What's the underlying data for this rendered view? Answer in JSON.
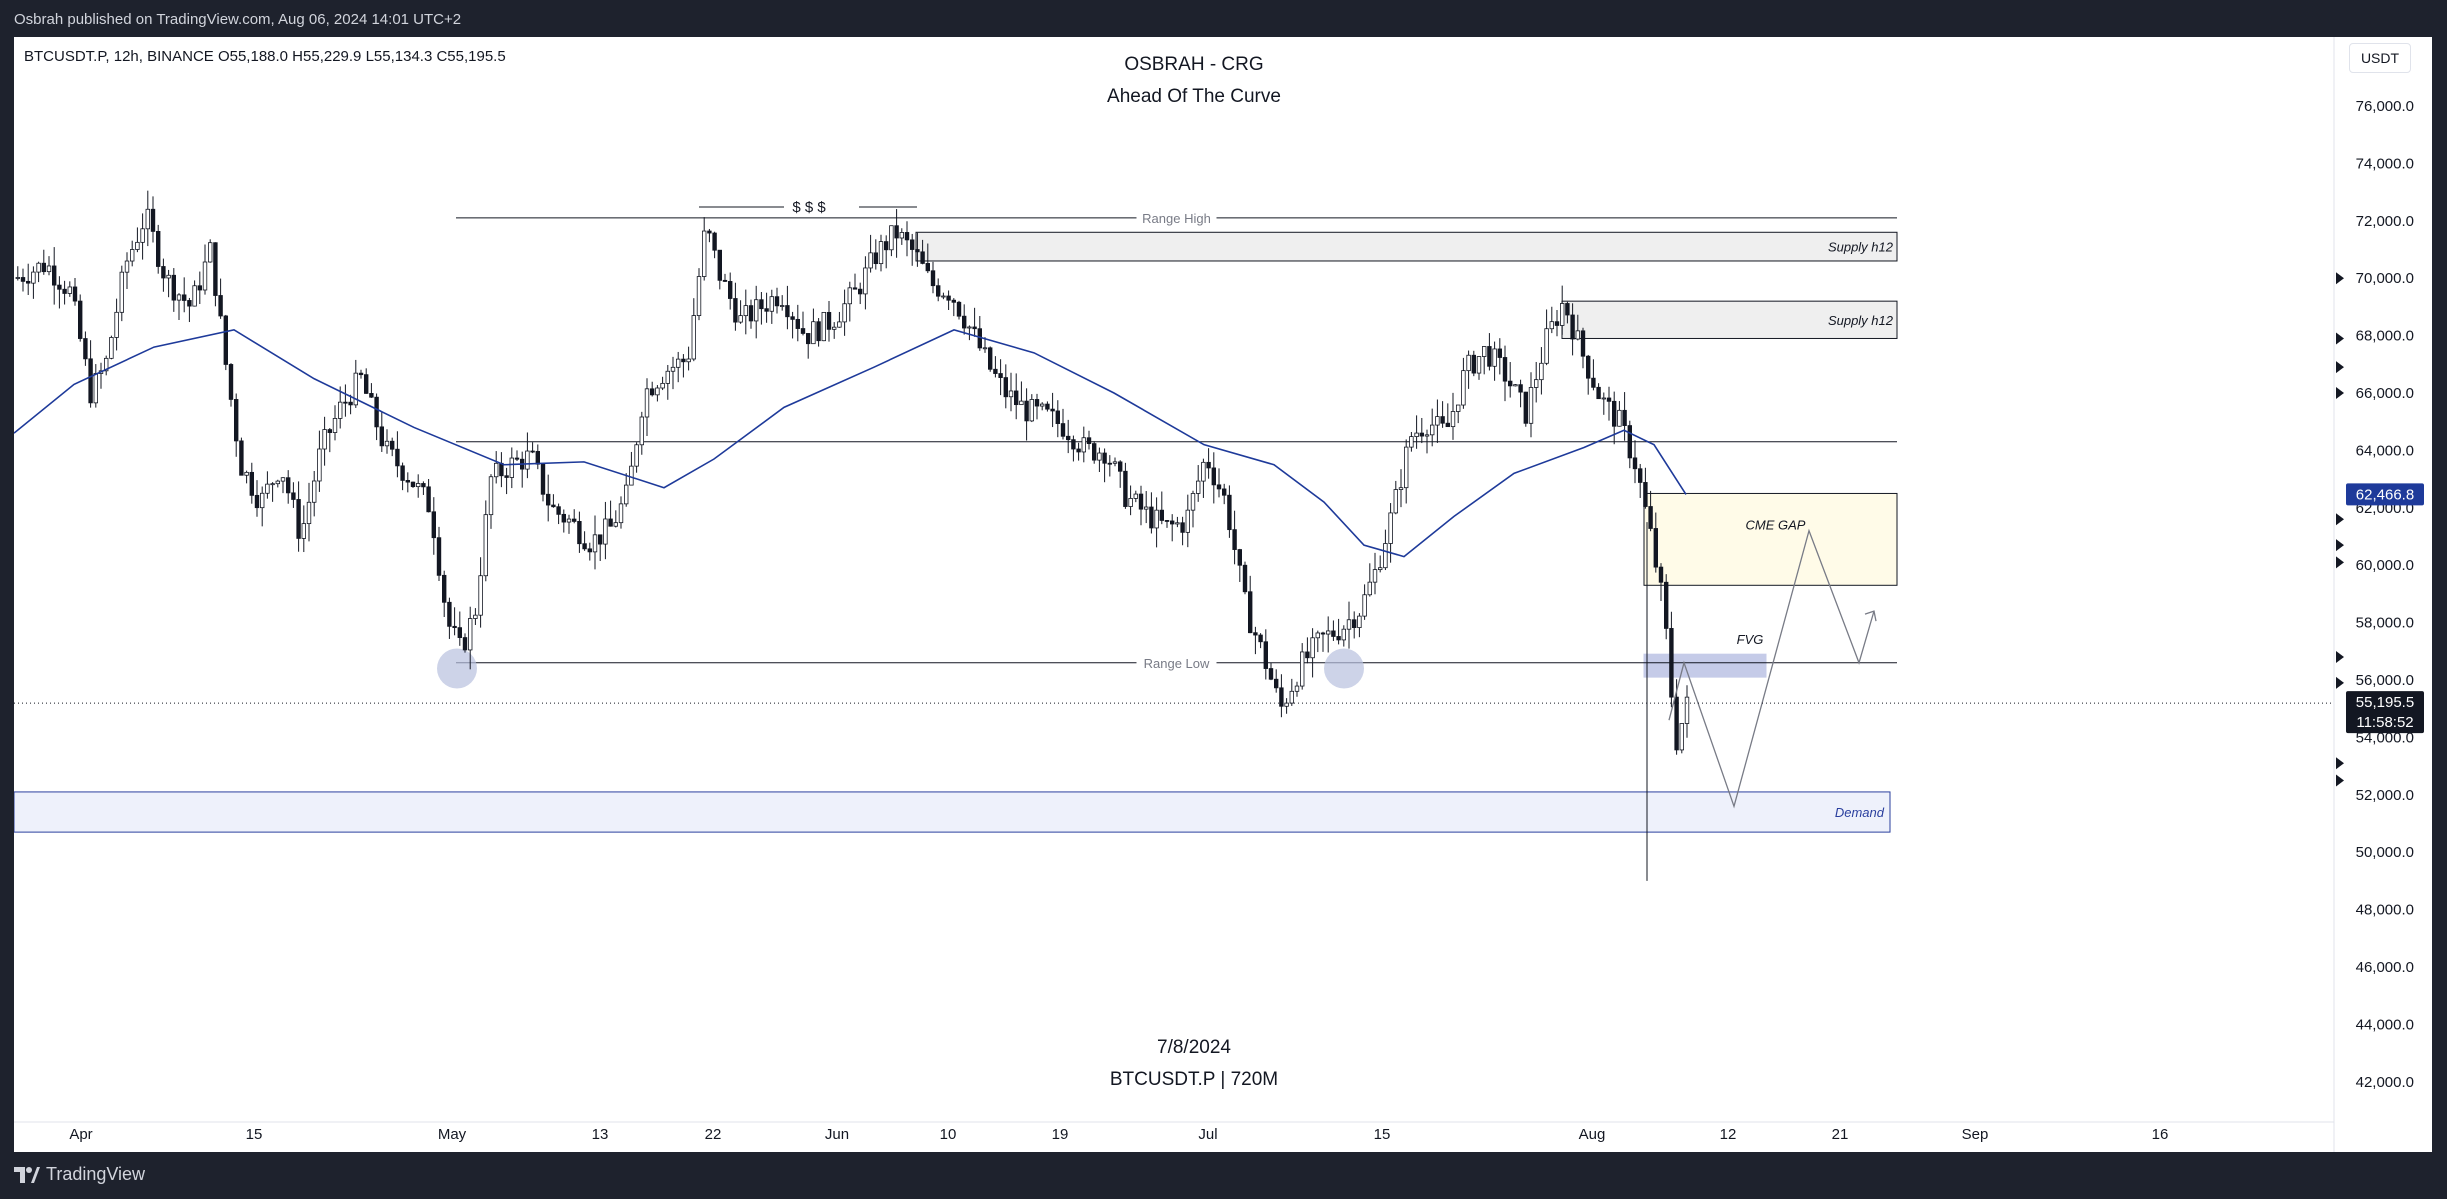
{
  "header": {
    "published": "Osbrah published on TradingView.com, Aug 06, 2024 14:01 UTC+2"
  },
  "legend": "BTCUSDT.P, 12h, BINANCE  O55,188.0  H55,229.9  L55,134.3  C55,195.5",
  "title": "OSBRAH - CRG",
  "subtitle": "Ahead Of The Curve",
  "watermark": {
    "date": "7/8/2024",
    "symbol": "BTCUSDT.P | 720M"
  },
  "currency_button": "USDT",
  "footer": {
    "brand": "TradingView"
  },
  "colors": {
    "up": "#ffffff",
    "down": "#131722",
    "ma": "#1e3a9a",
    "demand": "#2a3f9e",
    "cme_fill": "#fffbe8",
    "supply_fill": "#efefef",
    "price_tag": "#131722",
    "ma_tag": "#1e3a9a"
  },
  "chart_data": {
    "type": "candlestick",
    "interval": "12h",
    "y_axis": {
      "min": 41000,
      "max": 77000,
      "ticks": [
        76000,
        74000,
        72000,
        70000,
        68000,
        66000,
        64000,
        62000,
        60000,
        58000,
        56000,
        54000,
        52000,
        50000,
        48000,
        46000,
        44000,
        42000
      ]
    },
    "x_axis": {
      "labels": [
        "Apr",
        "15",
        "May",
        "13",
        "22",
        "Jun",
        "10",
        "19",
        "Jul",
        "15",
        "Aug",
        "12",
        "21",
        "Sep",
        "16"
      ]
    },
    "last_price": "55,195.5",
    "countdown": "11:58:52",
    "ma_value": "62,466.8",
    "levels": [
      {
        "label": "Range High",
        "price": 72100
      },
      {
        "label": "Range Low",
        "price": 56600
      },
      {
        "label": "",
        "price": 64300
      }
    ],
    "zones": [
      {
        "label": "Supply h12",
        "top": 71600,
        "bottom": 70600
      },
      {
        "label": "Supply h12",
        "top": 69200,
        "bottom": 67900
      },
      {
        "label": "CME GAP",
        "top": 62500,
        "bottom": 59300
      },
      {
        "label": "FVG",
        "top": 56900,
        "bottom": 56100
      },
      {
        "label": "Demand",
        "top": 52100,
        "bottom": 50700
      }
    ],
    "liquidity_label": "$ $ $"
  }
}
